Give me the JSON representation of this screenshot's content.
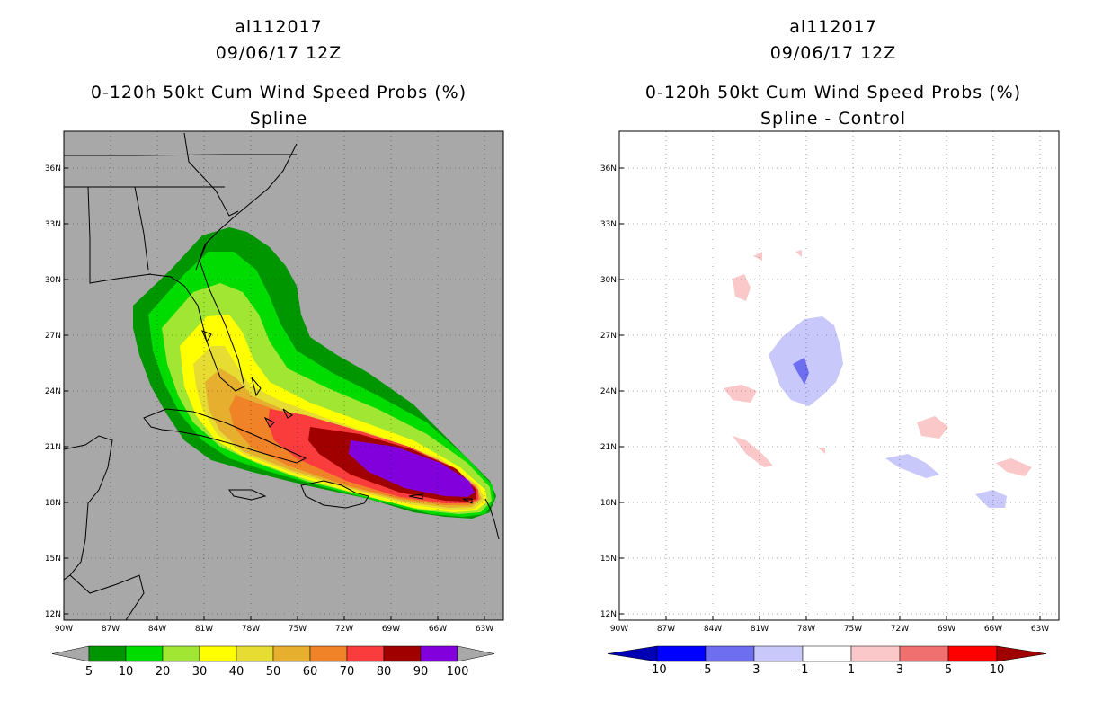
{
  "chart_data": [
    {
      "type": "map",
      "storm_id": "al112017",
      "datetime": "09/06/17 12Z",
      "title": "0-120h 50kt Cum Wind Speed Probs (%)",
      "subtitle": "Spline",
      "lon_ticks": [
        "90W",
        "87W",
        "84W",
        "81W",
        "78W",
        "75W",
        "72W",
        "69W",
        "66W",
        "63W"
      ],
      "lat_ticks": [
        "36N",
        "33N",
        "30N",
        "27N",
        "24N",
        "21N",
        "18N",
        "15N",
        "12N"
      ],
      "legend": {
        "labels": [
          "5",
          "10",
          "20",
          "30",
          "40",
          "50",
          "60",
          "70",
          "80",
          "90",
          "100"
        ],
        "colors": [
          "#009600",
          "#00dc00",
          "#a0e632",
          "#ffff00",
          "#e6dc32",
          "#e6af2d",
          "#f08228",
          "#fa3c3c",
          "#a00000",
          "#8200dc"
        ]
      }
    },
    {
      "type": "map",
      "storm_id": "al112017",
      "datetime": "09/06/17 12Z",
      "title": "0-120h 50kt Cum Wind Speed Probs (%)",
      "subtitle": "Spline - Control",
      "lon_ticks": [
        "90W",
        "87W",
        "84W",
        "81W",
        "78W",
        "75W",
        "72W",
        "69W",
        "66W",
        "63W"
      ],
      "lat_ticks": [
        "36N",
        "33N",
        "30N",
        "27N",
        "24N",
        "21N",
        "18N",
        "15N",
        "12N"
      ],
      "legend": {
        "labels": [
          "-10",
          "-5",
          "-3",
          "-1",
          "1",
          "3",
          "5",
          "10"
        ],
        "colors": [
          "#0000b4",
          "#0000ff",
          "#6e6ef0",
          "#c8c8fa",
          "#ffffff",
          "#fac8c8",
          "#f07070",
          "#ff0000",
          "#a00000"
        ]
      }
    }
  ]
}
